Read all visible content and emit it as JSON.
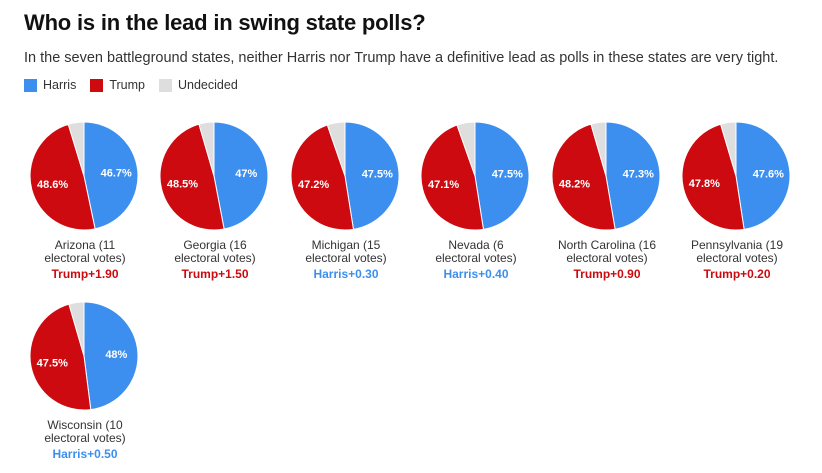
{
  "title": "Who is in the lead in swing state polls?",
  "subtitle": "In the seven battleground states, neither Harris nor Trump have a definitive lead as polls in these states are very tight.",
  "colors": {
    "harris": "#3d8fef",
    "trump": "#cc0a0f",
    "undecided": "#dedede"
  },
  "chart_data": {
    "type": "pie",
    "legend": [
      "Harris",
      "Trump",
      "Undecided"
    ],
    "legend_position": "top-left",
    "pies": [
      {
        "state_line1": "Arizona (11",
        "state_line2": "electoral votes)",
        "harris": 46.7,
        "trump": 48.6,
        "harris_label": "46.7%",
        "trump_label": "48.6%",
        "lead": "Trump+1.90",
        "leader": "trump"
      },
      {
        "state_line1": "Georgia (16",
        "state_line2": "electoral votes)",
        "harris": 47.0,
        "trump": 48.5,
        "harris_label": "47%",
        "trump_label": "48.5%",
        "lead": "Trump+1.50",
        "leader": "trump"
      },
      {
        "state_line1": "Michigan (15",
        "state_line2": "electoral votes)",
        "harris": 47.5,
        "trump": 47.2,
        "harris_label": "47.5%",
        "trump_label": "47.2%",
        "lead": "Harris+0.30",
        "leader": "harris"
      },
      {
        "state_line1": "Nevada (6",
        "state_line2": "electoral votes)",
        "harris": 47.5,
        "trump": 47.1,
        "harris_label": "47.5%",
        "trump_label": "47.1%",
        "lead": "Harris+0.40",
        "leader": "harris"
      },
      {
        "state_line1": "North Carolina (16",
        "state_line2": "electoral votes)",
        "harris": 47.3,
        "trump": 48.2,
        "harris_label": "47.3%",
        "trump_label": "48.2%",
        "lead": "Trump+0.90",
        "leader": "trump"
      },
      {
        "state_line1": "Pennsylvania (19",
        "state_line2": "electoral votes)",
        "harris": 47.6,
        "trump": 47.8,
        "harris_label": "47.6%",
        "trump_label": "47.8%",
        "lead": "Trump+0.20",
        "leader": "trump"
      },
      {
        "state_line1": "Wisconsin (10",
        "state_line2": "electoral votes)",
        "harris": 48.0,
        "trump": 47.5,
        "harris_label": "48%",
        "trump_label": "47.5%",
        "lead": "Harris+0.50",
        "leader": "harris"
      }
    ]
  }
}
